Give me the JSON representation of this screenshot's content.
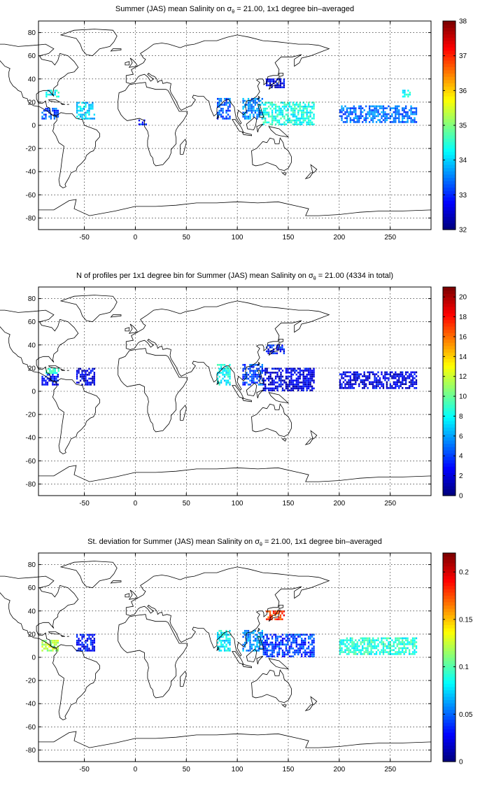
{
  "panels": [
    {
      "title": {
        "pre": "Summer (JAS) mean Salinity on ",
        "sym": "σ",
        "sub": "θ",
        "post": " = 21.00, 1x1 degree bin–averaged"
      },
      "colorbar": {
        "ticks": [
          "32",
          "33",
          "34",
          "35",
          "36",
          "37",
          "38"
        ]
      }
    },
    {
      "title": {
        "pre": "N of profiles per 1x1 degree bin for Summer (JAS) mean Salinity on ",
        "sym": "σ",
        "sub": "θ",
        "post": " = 21.00 (4334 in total)"
      },
      "colorbar": {
        "ticks": [
          "0",
          "2",
          "4",
          "6",
          "8",
          "10",
          "12",
          "14",
          "16",
          "18",
          "20"
        ]
      }
    },
    {
      "title": {
        "pre": "St. deviation for Summer (JAS) mean Salinity on ",
        "sym": "σ",
        "sub": "θ",
        "post": " = 21.00, 1x1 degree bin–averaged"
      },
      "colorbar": {
        "ticks": [
          "0",
          "0.05",
          "0.1",
          "0.15",
          "0.2"
        ]
      }
    }
  ],
  "chart_data": [
    {
      "type": "heatmap",
      "title": "Summer (JAS) mean Salinity on σθ = 21.00, 1x1 degree bin–averaged",
      "xticks": [
        -50,
        0,
        50,
        100,
        150,
        200,
        250
      ],
      "yticks": [
        -80,
        -60,
        -40,
        -20,
        0,
        20,
        40,
        60,
        80
      ],
      "xlim": [
        -95,
        290
      ],
      "ylim": [
        -90,
        90
      ],
      "grid": true,
      "colormap": "jet",
      "clim": [
        32,
        38
      ],
      "colorbar_ticks": [
        32,
        33,
        34,
        35,
        36,
        37,
        38
      ],
      "regions": [
        {
          "lon": [
            -92,
            -75
          ],
          "lat": [
            5,
            15
          ],
          "value": 33.2
        },
        {
          "lon": [
            -88,
            -75
          ],
          "lat": [
            24,
            30
          ],
          "value": 34.3
        },
        {
          "lon": [
            -58,
            -40
          ],
          "lat": [
            5,
            20
          ],
          "value": 34.0
        },
        {
          "lon": [
            3,
            10
          ],
          "lat": [
            0,
            5
          ],
          "value": 33.0
        },
        {
          "lon": [
            80,
            93
          ],
          "lat": [
            5,
            22
          ],
          "value": 33.3
        },
        {
          "lon": [
            105,
            125
          ],
          "lat": [
            5,
            22
          ],
          "value": 33.6
        },
        {
          "lon": [
            128,
            145
          ],
          "lat": [
            32,
            40
          ],
          "value": 32.6
        },
        {
          "lon": [
            125,
            175
          ],
          "lat": [
            0,
            20
          ],
          "value": 34.4
        },
        {
          "lon": [
            200,
            275
          ],
          "lat": [
            2,
            16
          ],
          "value": 33.4
        },
        {
          "lon": [
            260,
            270
          ],
          "lat": [
            24,
            30
          ],
          "value": 34.2
        }
      ]
    },
    {
      "type": "heatmap",
      "title": "N of profiles per 1x1 degree bin for Summer (JAS) mean Salinity on σθ = 21.00 (4334 in total)",
      "xticks": [
        -50,
        0,
        50,
        100,
        150,
        200,
        250
      ],
      "yticks": [
        -80,
        -60,
        -40,
        -20,
        0,
        20,
        40,
        60,
        80
      ],
      "xlim": [
        -95,
        290
      ],
      "ylim": [
        -90,
        90
      ],
      "grid": true,
      "colormap": "jet",
      "clim": [
        0,
        21
      ],
      "colorbar_ticks": [
        0,
        2,
        4,
        6,
        8,
        10,
        12,
        14,
        16,
        18,
        20
      ],
      "total_profiles": 4334,
      "regions": [
        {
          "lon": [
            -92,
            -75
          ],
          "lat": [
            5,
            15
          ],
          "value": 3
        },
        {
          "lon": [
            -88,
            -75
          ],
          "lat": [
            15,
            20
          ],
          "value": 9
        },
        {
          "lon": [
            -58,
            -40
          ],
          "lat": [
            5,
            20
          ],
          "value": 2
        },
        {
          "lon": [
            80,
            93
          ],
          "lat": [
            5,
            22
          ],
          "value": 8
        },
        {
          "lon": [
            105,
            125
          ],
          "lat": [
            5,
            22
          ],
          "value": 4
        },
        {
          "lon": [
            128,
            145
          ],
          "lat": [
            32,
            40
          ],
          "value": 3
        },
        {
          "lon": [
            125,
            175
          ],
          "lat": [
            0,
            20
          ],
          "value": 2
        },
        {
          "lon": [
            200,
            275
          ],
          "lat": [
            2,
            16
          ],
          "value": 2
        }
      ]
    },
    {
      "type": "heatmap",
      "title": "St. deviation for Summer (JAS) mean Salinity on σθ = 21.00, 1x1 degree bin–averaged",
      "xticks": [
        -50,
        0,
        50,
        100,
        150,
        200,
        250
      ],
      "yticks": [
        -80,
        -60,
        -40,
        -20,
        0,
        20,
        40,
        60,
        80
      ],
      "xlim": [
        -95,
        290
      ],
      "ylim": [
        -90,
        90
      ],
      "grid": true,
      "colormap": "jet",
      "clim": [
        0,
        0.22
      ],
      "colorbar_ticks": [
        0,
        0.05,
        0.1,
        0.15,
        0.2
      ],
      "regions": [
        {
          "lon": [
            -92,
            -75
          ],
          "lat": [
            5,
            15
          ],
          "value": 0.12
        },
        {
          "lon": [
            -58,
            -40
          ],
          "lat": [
            5,
            20
          ],
          "value": 0.03
        },
        {
          "lon": [
            80,
            93
          ],
          "lat": [
            5,
            22
          ],
          "value": 0.08
        },
        {
          "lon": [
            105,
            125
          ],
          "lat": [
            5,
            22
          ],
          "value": 0.06
        },
        {
          "lon": [
            128,
            145
          ],
          "lat": [
            32,
            40
          ],
          "value": 0.18
        },
        {
          "lon": [
            125,
            175
          ],
          "lat": [
            0,
            20
          ],
          "value": 0.04
        },
        {
          "lon": [
            200,
            275
          ],
          "lat": [
            2,
            16
          ],
          "value": 0.09
        }
      ]
    }
  ]
}
